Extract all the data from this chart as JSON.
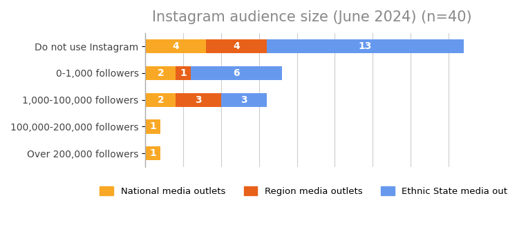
{
  "title": "Instagram audience size (June 2024) (n=40)",
  "categories": [
    "Do not use Instagram",
    "0-1,000 followers",
    "1,000-100,000 followers",
    "100,000-200,000 followers",
    "Over 200,000 followers"
  ],
  "series": [
    {
      "name": "National media outlets",
      "color": "#F9A825",
      "values": [
        4,
        2,
        2,
        1,
        1
      ]
    },
    {
      "name": "Region media outlets",
      "color": "#E8611A",
      "values": [
        4,
        1,
        3,
        0,
        0
      ]
    },
    {
      "name": "Ethnic State media outlets",
      "color": "#6699EE",
      "values": [
        13,
        6,
        3,
        0,
        0
      ]
    }
  ],
  "title_fontsize": 15,
  "title_color": "#888888",
  "label_color": "#444444",
  "background_color": "#ffffff",
  "grid_color": "#cccccc",
  "xlim": [
    0,
    22
  ],
  "bar_height": 0.52,
  "legend_ncol": 3
}
